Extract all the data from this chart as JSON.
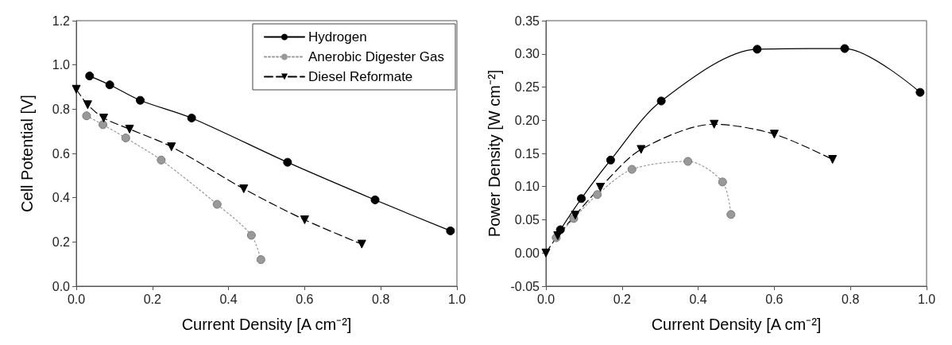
{
  "chart_data": [
    {
      "type": "line",
      "xlabel": "Current Density [A cm⁻²]",
      "ylabel": "Cell Potential [V]",
      "xlim": [
        0,
        1
      ],
      "ylim": [
        0,
        1.2
      ],
      "xticks": [
        {
          "value": 0,
          "label": "0.0"
        },
        {
          "value": 0.2,
          "label": "0.2"
        },
        {
          "value": 0.4,
          "label": "0.4"
        },
        {
          "value": 0.6,
          "label": "0.6"
        },
        {
          "value": 0.8,
          "label": "0.8"
        },
        {
          "value": 1,
          "label": "1.0"
        }
      ],
      "yticks": [
        {
          "value": 0,
          "label": "0.0"
        },
        {
          "value": 0.2,
          "label": "0.2"
        },
        {
          "value": 0.4,
          "label": "0.4"
        },
        {
          "value": 0.6,
          "label": "0.6"
        },
        {
          "value": 0.8,
          "label": "0.8"
        },
        {
          "value": 1,
          "label": "1.0"
        },
        {
          "value": 1.2,
          "label": "1.2"
        }
      ],
      "grid": false,
      "legend": "top right",
      "series": [
        {
          "name": "Hydrogen",
          "color": "#000000",
          "marker": "circle",
          "line_style": "solid",
          "x": [
            0.035,
            0.088,
            0.168,
            0.303,
            0.555,
            0.785,
            0.983
          ],
          "values": [
            0.95,
            0.91,
            0.84,
            0.76,
            0.56,
            0.39,
            0.25
          ]
        },
        {
          "name": "Anerobic Digester Gas",
          "color": "#999999",
          "marker": "circle",
          "line_style": "dotted",
          "x": [
            0.027,
            0.07,
            0.13,
            0.223,
            0.37,
            0.46,
            0.485
          ],
          "values": [
            0.77,
            0.73,
            0.67,
            0.57,
            0.37,
            0.23,
            0.12
          ]
        },
        {
          "name": "Diesel Reformate",
          "color": "#000000",
          "marker": "triangle",
          "line_style": "dashed",
          "x": [
            0,
            0.03,
            0.072,
            0.14,
            0.25,
            0.44,
            0.6,
            0.75
          ],
          "values": [
            0.89,
            0.82,
            0.76,
            0.71,
            0.63,
            0.44,
            0.3,
            0.19
          ]
        }
      ]
    },
    {
      "type": "line",
      "xlabel": "Current Density [A cm⁻²]",
      "ylabel": "Power Density [W cm⁻²]",
      "xlim": [
        0,
        1
      ],
      "ylim": [
        -0.05,
        0.35
      ],
      "xticks": [
        {
          "value": 0,
          "label": "0.0"
        },
        {
          "value": 0.2,
          "label": "0.2"
        },
        {
          "value": 0.4,
          "label": "0.4"
        },
        {
          "value": 0.6,
          "label": "0.6"
        },
        {
          "value": 0.8,
          "label": "0.8"
        },
        {
          "value": 1,
          "label": "1.0"
        }
      ],
      "yticks": [
        -0.05,
        {
          "value": 0,
          "label": "0.00"
        },
        {
          "value": 0.05,
          "label": "0.05"
        },
        {
          "value": 0.1,
          "label": "0.10"
        },
        0.15,
        {
          "value": 0.2,
          "label": "0.20"
        },
        0.25,
        {
          "value": 0.3,
          "label": "0.30"
        },
        0.35
      ],
      "grid": false,
      "legend": false,
      "series": [
        {
          "color": "#000000",
          "marker": "circle",
          "line_style": "solid",
          "x": [
            0.038,
            0.093,
            0.17,
            0.303,
            0.555,
            0.785,
            0.983
          ],
          "values": [
            0.035,
            0.082,
            0.14,
            0.229,
            0.307,
            0.308,
            0.242
          ]
        },
        {
          "color": "#999999",
          "marker": "circle",
          "line_style": "dotted",
          "x": [
            0.027,
            0.073,
            0.135,
            0.226,
            0.373,
            0.464,
            0.486
          ],
          "values": [
            0.023,
            0.052,
            0.088,
            0.126,
            0.138,
            0.107,
            0.058
          ]
        },
        {
          "color": "#000000",
          "marker": "triangle",
          "line_style": "dashed",
          "x": [
            0,
            0.031,
            0.077,
            0.143,
            0.25,
            0.442,
            0.6,
            0.753
          ],
          "values": [
            0,
            0.026,
            0.057,
            0.099,
            0.156,
            0.194,
            0.179,
            0.141
          ]
        }
      ]
    }
  ]
}
